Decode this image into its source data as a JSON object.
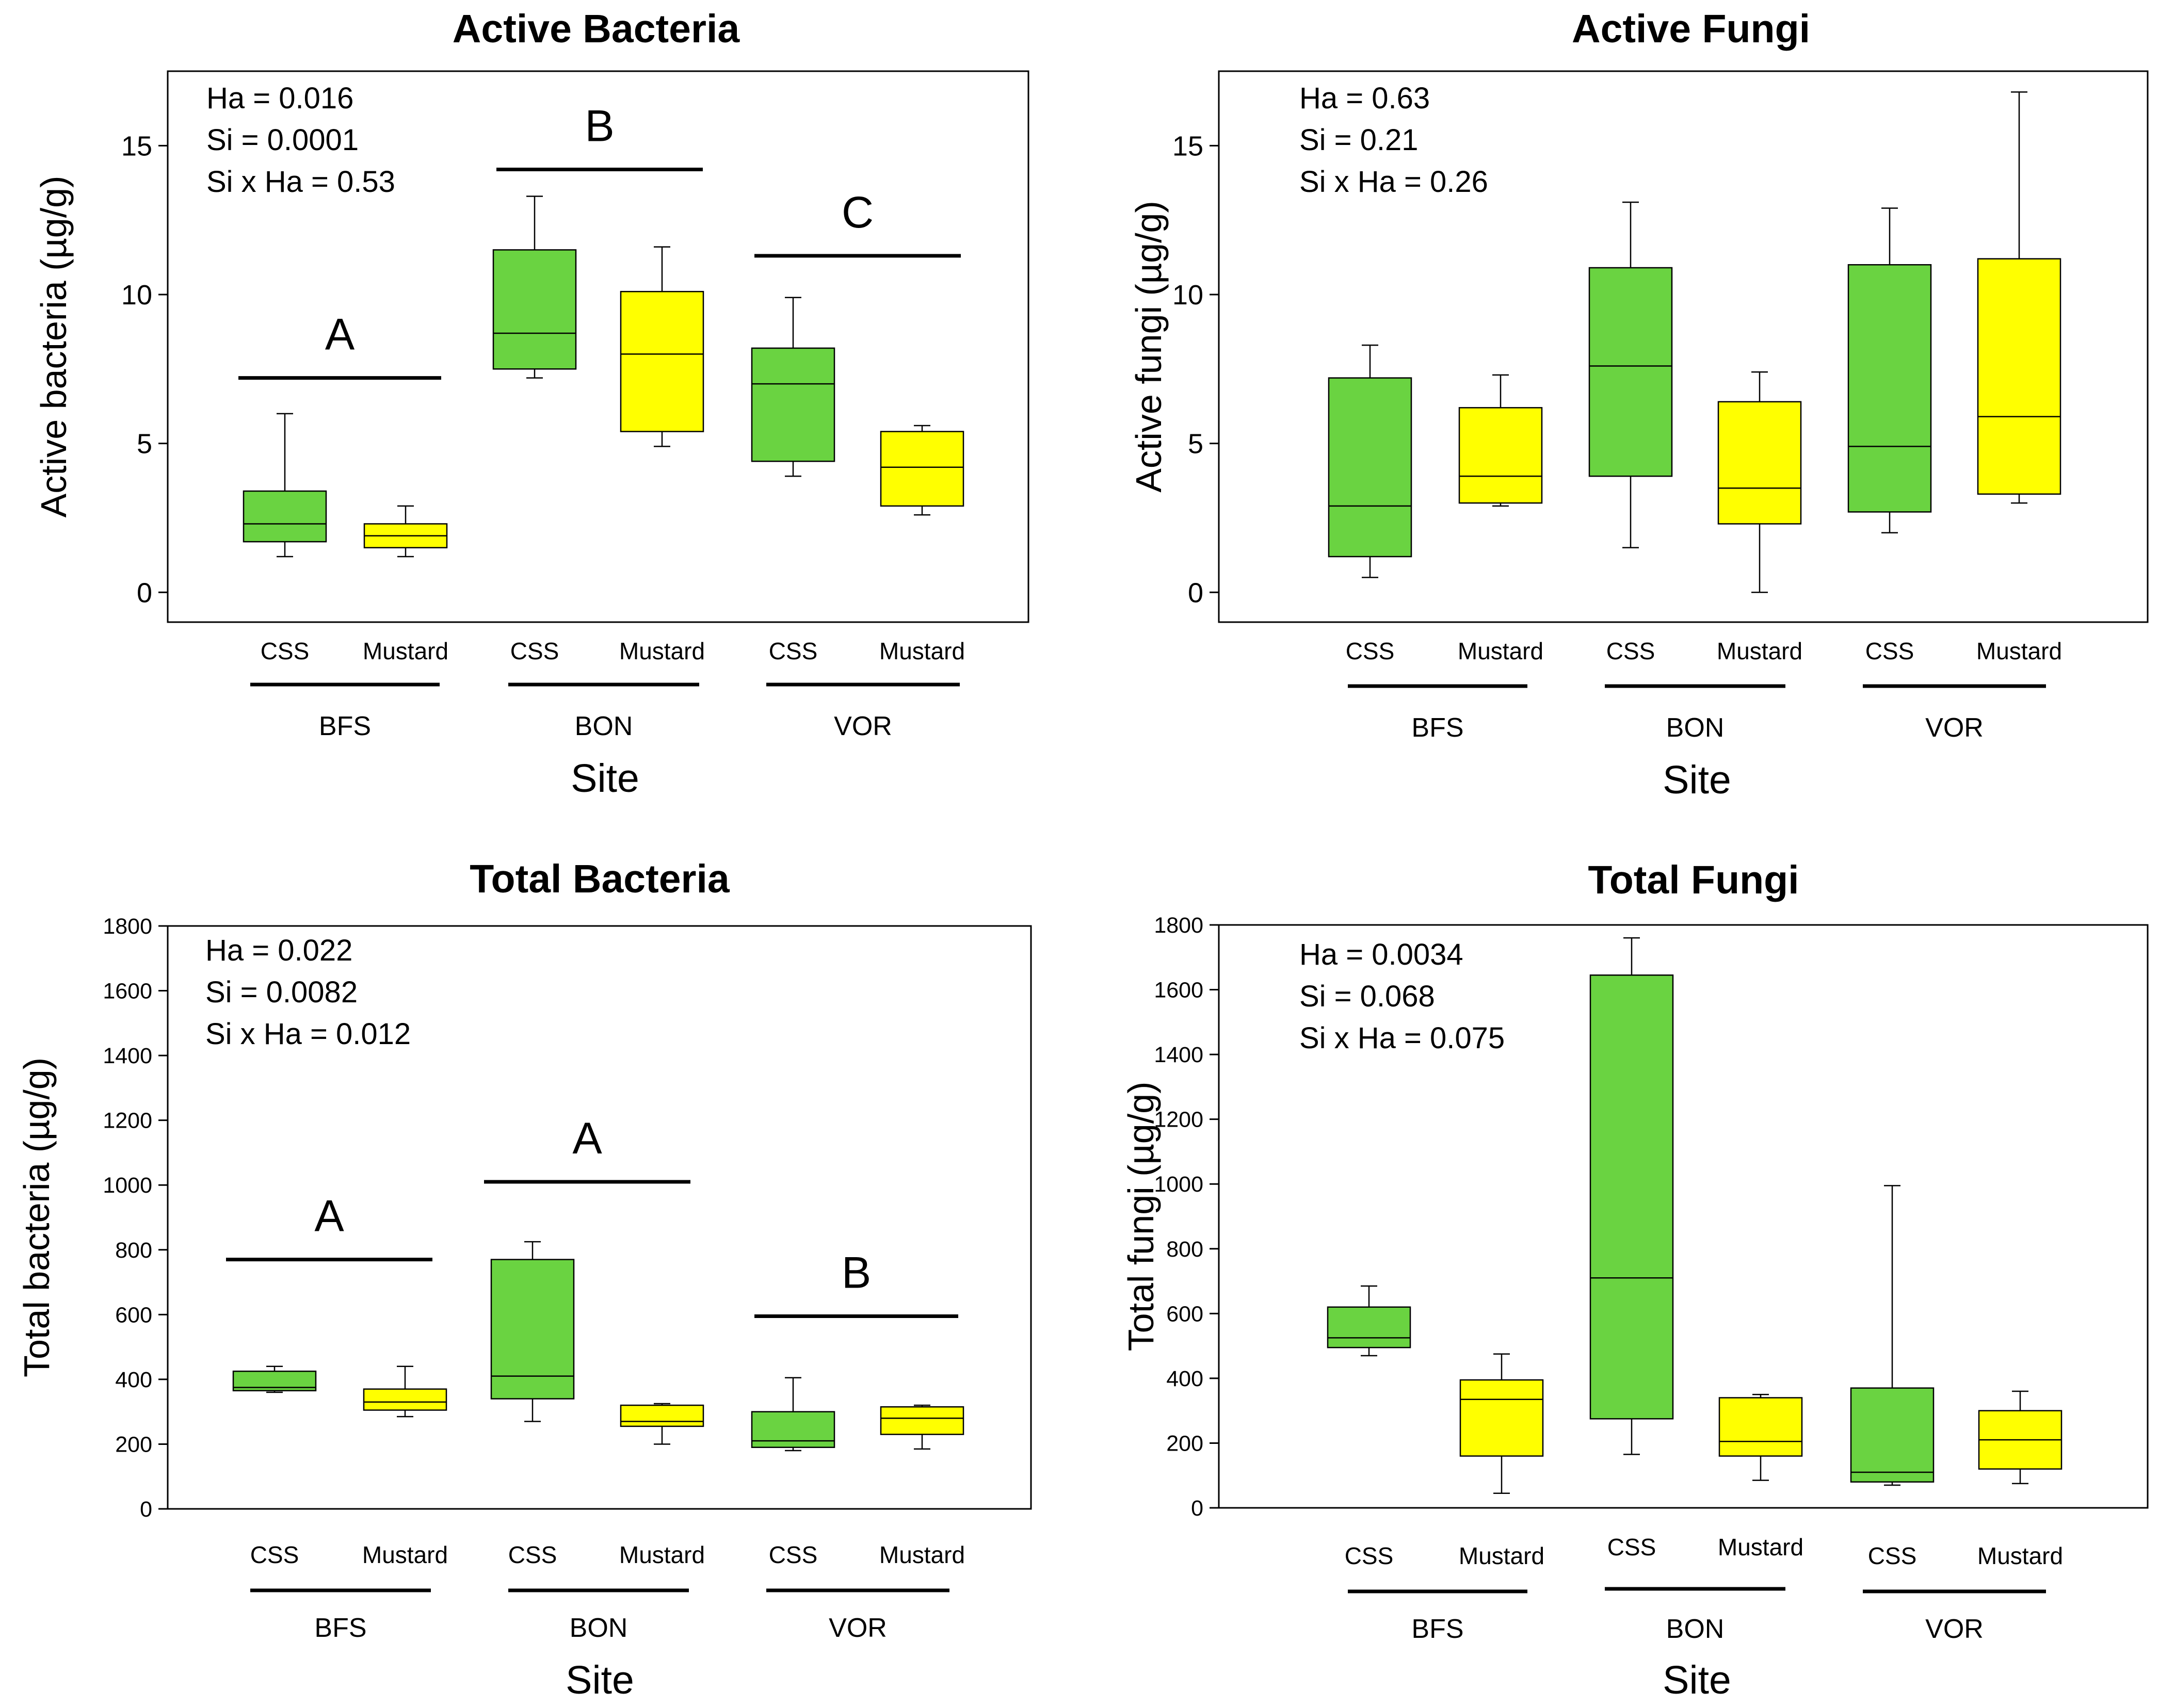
{
  "colors": {
    "CSS": "#6ad341",
    "Mustard": "#ffff00",
    "line": "#000000"
  },
  "chart_data": [
    {
      "type": "box",
      "title": "Active Bacteria",
      "xlabel": "Site",
      "ylabel": "Active bacteria (µg/g)",
      "ylim": [
        -1,
        17.5
      ],
      "yticks": [
        0,
        5,
        10,
        15
      ],
      "groups": [
        "BFS",
        "BON",
        "VOR"
      ],
      "categories": [
        "CSS",
        "Mustard"
      ],
      "stats": [
        "Ha = 0.016",
        "Si = 0.0001",
        "Si x Ha = 0.53"
      ],
      "letters": [
        {
          "label": "A",
          "group": 0,
          "y": 7.2
        },
        {
          "label": "B",
          "group": 1,
          "y": 14.2
        },
        {
          "label": "C",
          "group": 2,
          "y": 11.3
        }
      ],
      "boxes": [
        {
          "group": "BFS",
          "treatment": "CSS",
          "min": 1.2,
          "q1": 1.7,
          "median": 2.3,
          "q3": 3.4,
          "max": 6.0
        },
        {
          "group": "BFS",
          "treatment": "Mustard",
          "min": 1.2,
          "q1": 1.5,
          "median": 1.9,
          "q3": 2.3,
          "max": 2.9
        },
        {
          "group": "BON",
          "treatment": "CSS",
          "min": 7.2,
          "q1": 7.5,
          "median": 8.7,
          "q3": 11.5,
          "max": 13.3
        },
        {
          "group": "BON",
          "treatment": "Mustard",
          "min": 4.9,
          "q1": 5.4,
          "median": 8.0,
          "q3": 10.1,
          "max": 11.6
        },
        {
          "group": "VOR",
          "treatment": "CSS",
          "min": 3.9,
          "q1": 4.4,
          "median": 7.0,
          "q3": 8.2,
          "max": 9.9
        },
        {
          "group": "VOR",
          "treatment": "Mustard",
          "min": 2.6,
          "q1": 2.9,
          "median": 4.2,
          "q3": 5.4,
          "max": 5.6
        }
      ]
    },
    {
      "type": "box",
      "title": "Active Fungi",
      "xlabel": "Site",
      "ylabel": "Active fungi (µg/g)",
      "ylim": [
        -1,
        17.5
      ],
      "yticks": [
        0,
        5,
        10,
        15
      ],
      "groups": [
        "BFS",
        "BON",
        "VOR"
      ],
      "categories": [
        "CSS",
        "Mustard"
      ],
      "stats": [
        "Ha = 0.63",
        "Si = 0.21",
        "Si x Ha = 0.26"
      ],
      "letters": [],
      "boxes": [
        {
          "group": "BFS",
          "treatment": "CSS",
          "min": 0.5,
          "q1": 1.2,
          "median": 2.9,
          "q3": 7.2,
          "max": 8.3
        },
        {
          "group": "BFS",
          "treatment": "Mustard",
          "min": 2.9,
          "q1": 3.0,
          "median": 3.9,
          "q3": 6.2,
          "max": 7.3
        },
        {
          "group": "BON",
          "treatment": "CSS",
          "min": 1.5,
          "q1": 3.9,
          "median": 7.6,
          "q3": 10.9,
          "max": 13.1
        },
        {
          "group": "BON",
          "treatment": "Mustard",
          "min": 0.0,
          "q1": 2.3,
          "median": 3.5,
          "q3": 6.4,
          "max": 7.4
        },
        {
          "group": "VOR",
          "treatment": "CSS",
          "min": 2.0,
          "q1": 2.7,
          "median": 4.9,
          "q3": 11.0,
          "max": 12.9
        },
        {
          "group": "VOR",
          "treatment": "Mustard",
          "min": 3.0,
          "q1": 3.3,
          "median": 5.9,
          "q3": 11.2,
          "max": 16.8
        }
      ]
    },
    {
      "type": "box",
      "title": "Total Bacteria",
      "xlabel": "Site",
      "ylabel": "Total bacteria (µg/g)",
      "ylim": [
        0,
        1800
      ],
      "yticks": [
        0,
        200,
        400,
        600,
        800,
        1000,
        1200,
        1400,
        1600,
        1800
      ],
      "groups": [
        "BFS",
        "BON",
        "VOR"
      ],
      "categories": [
        "CSS",
        "Mustard"
      ],
      "stats": [
        "Ha = 0.022",
        "Si = 0.0082",
        "Si x Ha = 0.012"
      ],
      "letters": [
        {
          "label": "A",
          "group": 0,
          "y": 770
        },
        {
          "label": "A",
          "group": 1,
          "y": 1010
        },
        {
          "label": "B",
          "group": 2,
          "y": 595
        }
      ],
      "boxes": [
        {
          "group": "BFS",
          "treatment": "CSS",
          "min": 360,
          "q1": 365,
          "median": 375,
          "q3": 425,
          "max": 440
        },
        {
          "group": "BFS",
          "treatment": "Mustard",
          "min": 285,
          "q1": 305,
          "median": 330,
          "q3": 370,
          "max": 440
        },
        {
          "group": "BON",
          "treatment": "CSS",
          "min": 270,
          "q1": 340,
          "median": 410,
          "q3": 770,
          "max": 825
        },
        {
          "group": "BON",
          "treatment": "Mustard",
          "min": 200,
          "q1": 255,
          "median": 270,
          "q3": 320,
          "max": 325
        },
        {
          "group": "VOR",
          "treatment": "CSS",
          "min": 180,
          "q1": 190,
          "median": 210,
          "q3": 300,
          "max": 405
        },
        {
          "group": "VOR",
          "treatment": "Mustard",
          "min": 185,
          "q1": 230,
          "median": 280,
          "q3": 315,
          "max": 320
        }
      ]
    },
    {
      "type": "box",
      "title": "Total Fungi",
      "xlabel": "Site",
      "ylabel": "Total fungi (µg/g)",
      "ylim": [
        0,
        1800
      ],
      "yticks": [
        0,
        200,
        400,
        600,
        800,
        1000,
        1200,
        1400,
        1600,
        1800
      ],
      "groups": [
        "BFS",
        "BON",
        "VOR"
      ],
      "categories": [
        "CSS",
        "Mustard"
      ],
      "stats": [
        "Ha = 0.0034",
        "Si = 0.068",
        "Si x Ha = 0.075"
      ],
      "letters": [],
      "boxes": [
        {
          "group": "BFS",
          "treatment": "CSS",
          "min": 470,
          "q1": 495,
          "median": 525,
          "q3": 620,
          "max": 685
        },
        {
          "group": "BFS",
          "treatment": "Mustard",
          "min": 45,
          "q1": 160,
          "median": 335,
          "q3": 395,
          "max": 475
        },
        {
          "group": "BON",
          "treatment": "CSS",
          "min": 165,
          "q1": 275,
          "median": 710,
          "q3": 1645,
          "max": 1760
        },
        {
          "group": "BON",
          "treatment": "Mustard",
          "min": 85,
          "q1": 160,
          "median": 205,
          "q3": 340,
          "max": 350
        },
        {
          "group": "VOR",
          "treatment": "CSS",
          "min": 70,
          "q1": 80,
          "median": 110,
          "q3": 370,
          "max": 995
        },
        {
          "group": "VOR",
          "treatment": "Mustard",
          "min": 75,
          "q1": 120,
          "median": 210,
          "q3": 300,
          "max": 360
        }
      ]
    }
  ]
}
